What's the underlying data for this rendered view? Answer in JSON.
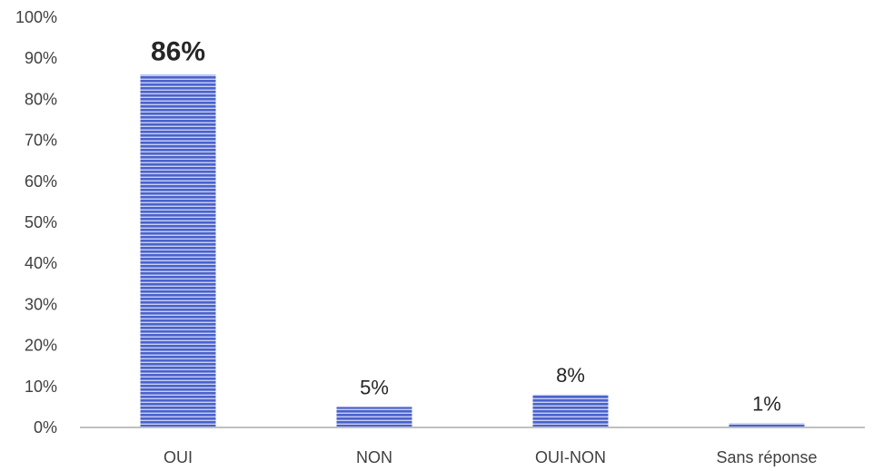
{
  "chart_data": {
    "type": "bar",
    "categories": [
      "OUI",
      "NON",
      "OUI-NON",
      "Sans réponse"
    ],
    "values": [
      86,
      5,
      8,
      1
    ],
    "data_labels": [
      "86%",
      "5%",
      "8%",
      "1%"
    ],
    "emphasized_label_index": 0,
    "y_ticks": [
      "0%",
      "10%",
      "20%",
      "30%",
      "40%",
      "50%",
      "60%",
      "70%",
      "80%",
      "90%",
      "100%"
    ],
    "ylim": [
      0,
      100
    ],
    "grid": false,
    "legend": "none",
    "title": "",
    "xlabel": "",
    "ylabel": ""
  },
  "colors": {
    "bar_fill": "#4a62cc",
    "bar_stripe": "#ffffff",
    "axis_line": "#bfbfbf"
  }
}
